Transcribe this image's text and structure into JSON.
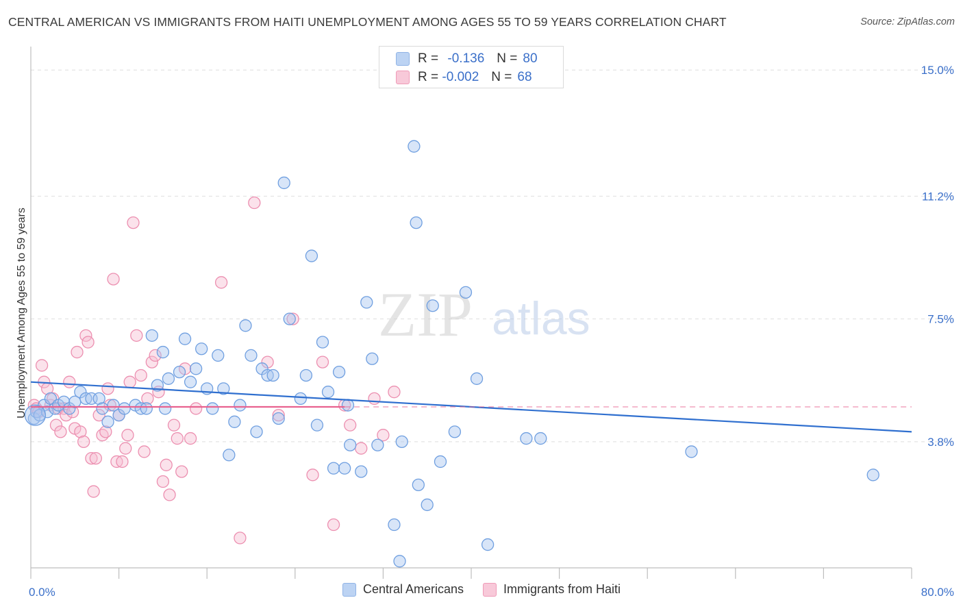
{
  "title": "CENTRAL AMERICAN VS IMMIGRANTS FROM HAITI UNEMPLOYMENT AMONG AGES 55 TO 59 YEARS CORRELATION CHART",
  "source": "Source: ZipAtlas.com",
  "watermark": {
    "zip": "ZIP",
    "atlas": "atlas"
  },
  "stats": [
    {
      "r_label": "R =",
      "r_value": "-0.136",
      "n_label": "N =",
      "n_value": "80",
      "color": "#8fb3e6"
    },
    {
      "r_label": "R =",
      "r_value": "-0.002",
      "n_label": "N =",
      "n_value": "68",
      "color": "#ef9ab7"
    }
  ],
  "legend": {
    "series1": "Central Americans",
    "series2": "Immigrants from Haiti"
  },
  "chart_data": {
    "type": "scatter",
    "title": "CENTRAL AMERICAN VS IMMIGRANTS FROM HAITI UNEMPLOYMENT AMONG AGES 55 TO 59 YEARS CORRELATION CHART",
    "xlabel": "",
    "ylabel": "Unemployment Among Ages 55 to 59 years",
    "xlim": [
      0,
      80
    ],
    "ylim": [
      0,
      15.5
    ],
    "x_tick_labels": [
      "0.0%",
      "80.0%"
    ],
    "y_ticks": [
      3.8,
      7.5,
      11.2,
      15.0
    ],
    "y_tick_labels": [
      "3.8%",
      "7.5%",
      "11.2%",
      "15.0%"
    ],
    "grid": true,
    "legend_position": "bottom-center",
    "series": [
      {
        "name": "Central Americans",
        "color": "#6f9fe0",
        "fill": "#a9c5ef",
        "trend": {
          "x0": 0,
          "y0": 5.6,
          "x1": 80,
          "y1": 4.1,
          "color": "#2f6fcf"
        },
        "points": [
          [
            0.3,
            4.5
          ],
          [
            0.5,
            4.7
          ],
          [
            0.8,
            4.6
          ],
          [
            1.2,
            4.9
          ],
          [
            1.5,
            4.7
          ],
          [
            1.8,
            5.1
          ],
          [
            2.2,
            4.8
          ],
          [
            2.5,
            4.9
          ],
          [
            3.0,
            5.0
          ],
          [
            3.5,
            4.8
          ],
          [
            4.0,
            5.0
          ],
          [
            4.5,
            5.3
          ],
          [
            5.0,
            5.1
          ],
          [
            5.5,
            5.1
          ],
          [
            6.2,
            5.1
          ],
          [
            6.5,
            4.8
          ],
          [
            7.0,
            4.4
          ],
          [
            7.5,
            4.9
          ],
          [
            8.0,
            4.6
          ],
          [
            8.5,
            4.8
          ],
          [
            9.5,
            4.9
          ],
          [
            10.0,
            4.8
          ],
          [
            10.5,
            4.8
          ],
          [
            11.0,
            7.0
          ],
          [
            11.5,
            5.5
          ],
          [
            12.0,
            6.5
          ],
          [
            12.2,
            4.8
          ],
          [
            12.5,
            5.7
          ],
          [
            13.5,
            5.9
          ],
          [
            14.0,
            6.9
          ],
          [
            14.5,
            5.6
          ],
          [
            15.0,
            6.0
          ],
          [
            15.5,
            6.6
          ],
          [
            16.0,
            5.4
          ],
          [
            16.5,
            4.8
          ],
          [
            17.0,
            6.4
          ],
          [
            17.5,
            5.4
          ],
          [
            18.0,
            3.4
          ],
          [
            18.5,
            4.4
          ],
          [
            19.0,
            4.9
          ],
          [
            19.5,
            7.3
          ],
          [
            20.0,
            6.4
          ],
          [
            20.5,
            4.1
          ],
          [
            21.0,
            6.0
          ],
          [
            21.5,
            5.8
          ],
          [
            22.0,
            5.8
          ],
          [
            22.5,
            4.5
          ],
          [
            23.0,
            11.6
          ],
          [
            23.5,
            7.5
          ],
          [
            24.5,
            5.1
          ],
          [
            25.0,
            5.8
          ],
          [
            25.5,
            9.4
          ],
          [
            26.0,
            4.3
          ],
          [
            26.5,
            6.8
          ],
          [
            27.0,
            5.3
          ],
          [
            27.5,
            3.0
          ],
          [
            28.0,
            5.9
          ],
          [
            28.5,
            3.0
          ],
          [
            28.8,
            4.9
          ],
          [
            29.0,
            3.7
          ],
          [
            30.0,
            2.9
          ],
          [
            30.5,
            8.0
          ],
          [
            31.0,
            6.3
          ],
          [
            31.5,
            3.7
          ],
          [
            33.0,
            1.3
          ],
          [
            33.5,
            0.2
          ],
          [
            33.7,
            3.8
          ],
          [
            34.8,
            12.7
          ],
          [
            35.0,
            10.4
          ],
          [
            35.2,
            2.5
          ],
          [
            36.0,
            1.9
          ],
          [
            36.5,
            7.9
          ],
          [
            37.2,
            3.2
          ],
          [
            38.5,
            4.1
          ],
          [
            39.5,
            8.3
          ],
          [
            40.5,
            5.7
          ],
          [
            41.5,
            0.7
          ],
          [
            45.0,
            3.9
          ],
          [
            46.3,
            3.9
          ],
          [
            60.0,
            3.5
          ],
          [
            76.5,
            2.8
          ]
        ]
      },
      {
        "name": "Immigrants from Haiti",
        "color": "#ec8fb0",
        "fill": "#f6bfd3",
        "trend": {
          "x0": 0,
          "y0": 4.85,
          "x1": 28.5,
          "y1": 4.85,
          "dash_to": 80,
          "color": "#e8628f"
        },
        "points": [
          [
            0.3,
            4.9
          ],
          [
            0.5,
            4.8
          ],
          [
            0.7,
            4.7
          ],
          [
            1.0,
            6.1
          ],
          [
            1.2,
            5.6
          ],
          [
            1.5,
            5.4
          ],
          [
            1.8,
            4.9
          ],
          [
            2.0,
            5.1
          ],
          [
            2.3,
            4.3
          ],
          [
            2.5,
            4.8
          ],
          [
            2.7,
            4.1
          ],
          [
            3.0,
            4.8
          ],
          [
            3.2,
            4.6
          ],
          [
            3.5,
            5.6
          ],
          [
            3.8,
            4.7
          ],
          [
            4.0,
            4.2
          ],
          [
            4.2,
            6.5
          ],
          [
            4.5,
            4.1
          ],
          [
            4.8,
            3.8
          ],
          [
            5.0,
            7.0
          ],
          [
            5.2,
            6.8
          ],
          [
            5.5,
            3.3
          ],
          [
            5.7,
            2.3
          ],
          [
            5.9,
            3.3
          ],
          [
            6.2,
            4.6
          ],
          [
            6.5,
            4.0
          ],
          [
            6.8,
            4.1
          ],
          [
            7.0,
            5.4
          ],
          [
            7.2,
            4.9
          ],
          [
            7.5,
            8.7
          ],
          [
            7.8,
            3.2
          ],
          [
            8.0,
            4.6
          ],
          [
            8.3,
            3.2
          ],
          [
            8.6,
            3.6
          ],
          [
            8.8,
            4.0
          ],
          [
            9.0,
            5.6
          ],
          [
            9.3,
            10.4
          ],
          [
            9.6,
            7.0
          ],
          [
            10.0,
            5.8
          ],
          [
            10.3,
            3.5
          ],
          [
            10.6,
            5.1
          ],
          [
            11.0,
            6.2
          ],
          [
            11.3,
            6.4
          ],
          [
            11.6,
            5.3
          ],
          [
            12.0,
            2.6
          ],
          [
            12.3,
            3.1
          ],
          [
            12.6,
            2.2
          ],
          [
            13.0,
            4.3
          ],
          [
            13.3,
            3.9
          ],
          [
            13.7,
            2.9
          ],
          [
            14.0,
            6.0
          ],
          [
            14.5,
            3.9
          ],
          [
            15.0,
            4.8
          ],
          [
            17.3,
            8.6
          ],
          [
            19.0,
            0.9
          ],
          [
            20.3,
            11.0
          ],
          [
            21.5,
            6.2
          ],
          [
            22.5,
            4.6
          ],
          [
            23.8,
            7.5
          ],
          [
            25.6,
            2.8
          ],
          [
            26.5,
            6.2
          ],
          [
            27.5,
            1.3
          ],
          [
            28.5,
            4.9
          ],
          [
            29.0,
            4.3
          ],
          [
            30.0,
            3.6
          ],
          [
            31.2,
            5.1
          ],
          [
            32.0,
            4.0
          ],
          [
            33.0,
            5.3
          ]
        ]
      }
    ]
  }
}
